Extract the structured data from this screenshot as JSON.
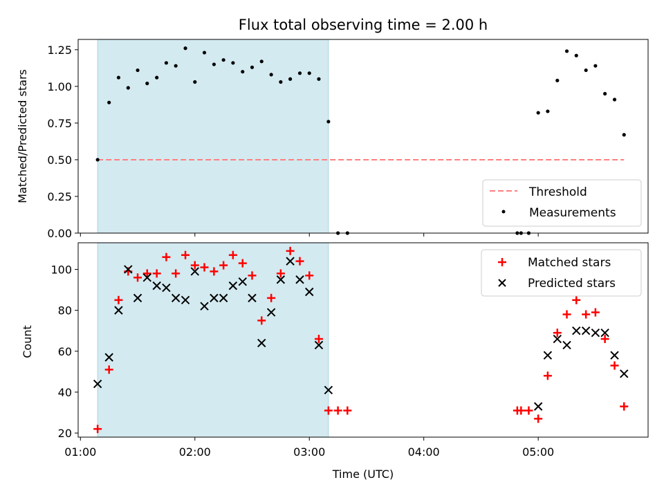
{
  "title": "Flux total observing time = 2.00 h",
  "colors": {
    "shade": "#d3eaf0",
    "threshold": "#ff7f7f",
    "measurement": "#000000",
    "matched": "#ff0000",
    "predicted": "#000000"
  },
  "chart_data": [
    {
      "type": "scatter",
      "ylabel": "Matched/Predicted stars",
      "ylim": [
        0,
        1.32
      ],
      "yticks": [
        "0.00",
        "0.25",
        "0.50",
        "0.75",
        "1.00",
        "1.25"
      ],
      "xlim_hours": [
        0.98,
        5.96
      ],
      "shaded_span_hours": [
        1.15,
        3.167
      ],
      "legend": {
        "position": "lower-right",
        "threshold_label": "Threshold",
        "measurements_label": "Measurements"
      },
      "threshold": {
        "value": 0.5,
        "x_start": 1.15,
        "x_end": 5.75
      },
      "measurements": {
        "x": [
          1.15,
          1.25,
          1.333,
          1.417,
          1.5,
          1.583,
          1.667,
          1.75,
          1.833,
          1.917,
          2.0,
          2.083,
          2.167,
          2.25,
          2.333,
          2.417,
          2.5,
          2.583,
          2.667,
          2.75,
          2.833,
          2.917,
          3.0,
          3.083,
          3.167,
          3.25,
          3.333,
          4.817,
          4.85,
          4.917,
          5.0,
          5.083,
          5.167,
          5.25,
          5.333,
          5.417,
          5.5,
          5.583,
          5.667,
          5.75
        ],
        "y": [
          0.5,
          0.89,
          1.06,
          0.99,
          1.11,
          1.02,
          1.06,
          1.16,
          1.14,
          1.26,
          1.03,
          1.23,
          1.15,
          1.18,
          1.16,
          1.1,
          1.13,
          1.17,
          1.08,
          1.03,
          1.05,
          1.09,
          1.09,
          1.05,
          0.76,
          0.0,
          0.0,
          0.0,
          0.0,
          0.0,
          0.82,
          0.83,
          1.04,
          1.24,
          1.21,
          1.11,
          1.14,
          0.95,
          0.91,
          0.67
        ]
      }
    },
    {
      "type": "scatter",
      "xlabel": "Time (UTC)",
      "ylabel": "Count",
      "ylim": [
        18,
        113
      ],
      "yticks": [
        "20",
        "40",
        "60",
        "80",
        "100"
      ],
      "xticks": [
        "01:00",
        "02:00",
        "03:00",
        "04:00",
        "05:00"
      ],
      "xlim_hours": [
        0.98,
        5.96
      ],
      "shaded_span_hours": [
        1.15,
        3.167
      ],
      "legend": {
        "position": "top-right",
        "matched_label": "Matched stars",
        "predicted_label": "Predicted stars"
      },
      "series": [
        {
          "name": "Matched stars",
          "marker": "plus",
          "x": [
            1.15,
            1.25,
            1.333,
            1.417,
            1.5,
            1.583,
            1.667,
            1.75,
            1.833,
            1.917,
            2.0,
            2.083,
            2.167,
            2.25,
            2.333,
            2.417,
            2.5,
            2.583,
            2.667,
            2.75,
            2.833,
            2.917,
            3.0,
            3.083,
            3.167,
            3.25,
            3.333,
            4.817,
            4.85,
            4.917,
            5.0,
            5.083,
            5.167,
            5.25,
            5.333,
            5.417,
            5.5,
            5.583,
            5.667,
            5.75
          ],
          "y": [
            22,
            51,
            85,
            99,
            96,
            98,
            98,
            106,
            98,
            107,
            102,
            101,
            99,
            102,
            107,
            103,
            97,
            75,
            86,
            98,
            109,
            104,
            97,
            66,
            31,
            31,
            31,
            31,
            31,
            31,
            27,
            48,
            69,
            78,
            85,
            78,
            79,
            66,
            53,
            33
          ]
        },
        {
          "name": "Predicted stars",
          "marker": "x",
          "x": [
            1.15,
            1.25,
            1.333,
            1.417,
            1.5,
            1.583,
            1.667,
            1.75,
            1.833,
            1.917,
            2.0,
            2.083,
            2.167,
            2.25,
            2.333,
            2.417,
            2.5,
            2.583,
            2.667,
            2.75,
            2.833,
            2.917,
            3.0,
            3.083,
            3.167,
            5.0,
            5.083,
            5.167,
            5.25,
            5.333,
            5.417,
            5.5,
            5.583,
            5.667,
            5.75
          ],
          "y": [
            44,
            57,
            80,
            100,
            86,
            96,
            92,
            91,
            86,
            85,
            99,
            82,
            86,
            86,
            92,
            94,
            86,
            64,
            79,
            95,
            104,
            95,
            89,
            63,
            41,
            33,
            58,
            66,
            63,
            70,
            70,
            69,
            69,
            58,
            49
          ]
        }
      ]
    }
  ]
}
